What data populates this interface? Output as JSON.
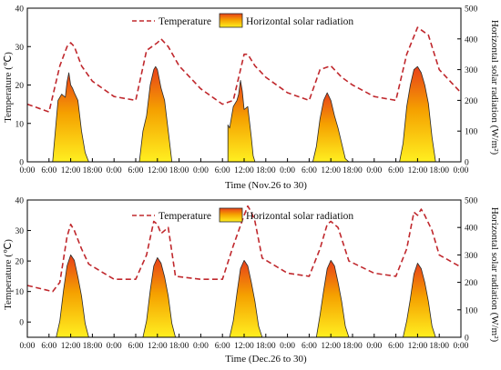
{
  "colors": {
    "temperature_line": "#c0282d",
    "radiation_fill_top": "#e8401a",
    "radiation_fill_mid": "#f5a000",
    "radiation_fill_bottom": "#ffef20",
    "radiation_edge": "#2a2a2a",
    "axis": "#000000"
  },
  "chart_data": [
    {
      "type": "line+area",
      "legend": {
        "temperature": "Temperature",
        "radiation": "Horizontal solar radiation",
        "placement": "top-center"
      },
      "xlabel": "Time (Nov.26 to 30)",
      "ylabel_left": "Temperature (℃)",
      "ylabel_right": "Horizontal solar radiation (W/m²)",
      "ylim_left": [
        0,
        40
      ],
      "ylim_right": [
        0,
        500
      ],
      "yticks_left": [
        "0",
        "10",
        "20",
        "30",
        "40"
      ],
      "yticks_right": [
        "0",
        "100",
        "200",
        "300",
        "400",
        "500"
      ],
      "xticks": [
        "0:00",
        "6:00",
        "12:00",
        "18:00",
        "0:00",
        "6:00",
        "12:00",
        "18:00",
        "0:00",
        "6:00",
        "12:00",
        "18:00",
        "0:00",
        "6:00",
        "12:00",
        "18:00",
        "0:00",
        "6:00",
        "12:00",
        "18:00",
        "0:00"
      ],
      "grid": false,
      "series": [
        {
          "name": "Temperature",
          "x_hours": [
            0,
            6,
            9,
            11,
            12,
            13,
            15,
            18,
            24,
            30,
            33,
            36,
            37,
            39,
            42,
            48,
            54,
            57,
            60,
            61,
            63,
            66,
            72,
            78,
            81,
            84,
            87,
            90,
            96,
            102,
            105,
            108,
            111,
            114,
            120
          ],
          "values": [
            15,
            13,
            25,
            30,
            31,
            30,
            25,
            21,
            17,
            16,
            29,
            31,
            32,
            30,
            25,
            19,
            15,
            16,
            28,
            28,
            25,
            22,
            18,
            16,
            24,
            25,
            22,
            20,
            17,
            16,
            28,
            35,
            33,
            24,
            18
          ]
        },
        {
          "name": "Horizontal solar radiation",
          "x_hours": [
            7,
            8.5,
            9.5,
            10.5,
            11,
            11.5,
            12,
            12.5,
            13,
            14,
            15,
            16,
            17,
            31,
            32,
            33,
            34,
            35,
            35.5,
            36,
            36.5,
            37,
            38,
            39,
            40,
            41,
            55,
            55.5,
            56,
            57,
            58,
            58.5,
            59,
            59.5,
            60,
            61,
            62,
            62.5,
            63,
            64,
            65,
            79,
            80,
            81,
            82,
            83,
            84,
            85,
            86,
            87,
            88,
            89,
            103,
            104,
            105,
            106,
            107,
            108,
            109,
            110,
            111,
            112,
            113
          ],
          "values": [
            0,
            200,
            220,
            210,
            260,
            290,
            250,
            240,
            225,
            200,
            100,
            30,
            0,
            0,
            100,
            150,
            250,
            300,
            310,
            300,
            270,
            240,
            200,
            100,
            0,
            0,
            0,
            120,
            110,
            180,
            200,
            220,
            265,
            230,
            170,
            180,
            80,
            20,
            0,
            0,
            0,
            0,
            50,
            140,
            200,
            225,
            200,
            150,
            110,
            60,
            10,
            0,
            0,
            60,
            180,
            250,
            300,
            310,
            290,
            250,
            190,
            80,
            0
          ]
        }
      ]
    },
    {
      "type": "line+area",
      "legend": {
        "temperature": "Temperature",
        "radiation": "Horizontal solar radiation",
        "placement": "top-center"
      },
      "xlabel": "Time (Dec.26 to 30)",
      "ylabel_left": "Temperature (℃)",
      "ylabel_right": "Horizontal solar radiation (W/m²)",
      "ylim_left": [
        -5,
        40
      ],
      "ylim_right": [
        0,
        500
      ],
      "yticks_left": [
        "0",
        "10",
        "20",
        "30",
        "40"
      ],
      "yticks_right": [
        "0",
        "100",
        "200",
        "300",
        "400",
        "500"
      ],
      "xticks": [
        "0:00",
        "6:00",
        "12:00",
        "18:00",
        "0:00",
        "6:00",
        "12:00",
        "18:00",
        "0:00",
        "6:00",
        "12:00",
        "18:00",
        "0:00",
        "6:00",
        "12:00",
        "18:00",
        "0:00",
        "6:00",
        "12:00",
        "18:00",
        "0:00"
      ],
      "grid": false,
      "series": [
        {
          "name": "Temperature",
          "x_hours": [
            0,
            7,
            9,
            11,
            12,
            13,
            15,
            17,
            24,
            30,
            33,
            35,
            36,
            37,
            39,
            41,
            48,
            54,
            57,
            60,
            61,
            62,
            63,
            65,
            72,
            78,
            81,
            83,
            84,
            86,
            89,
            96,
            102,
            105,
            107,
            108,
            109,
            110,
            112,
            114,
            120
          ],
          "values": [
            12,
            10,
            13,
            28,
            32,
            30,
            24,
            19,
            14,
            14,
            22,
            33,
            32,
            29,
            31,
            15,
            14,
            14,
            25,
            35,
            38,
            36,
            33,
            21,
            16,
            15,
            24,
            32,
            33,
            31,
            20,
            16,
            15,
            24,
            36,
            35,
            37,
            35,
            30,
            22,
            18
          ]
        },
        {
          "name": "Horizontal solar radiation",
          "x_hours": [
            8,
            9,
            10,
            11,
            12,
            13,
            14,
            15,
            16,
            17,
            32,
            33,
            34,
            35,
            36,
            37,
            38,
            39,
            40,
            41,
            56,
            57,
            58,
            59,
            60,
            61,
            62,
            63,
            64,
            65,
            80,
            81,
            82,
            83,
            84,
            85,
            86,
            87,
            88,
            89,
            104,
            105,
            106,
            107,
            108,
            109,
            110,
            111,
            112,
            113
          ],
          "values": [
            0,
            60,
            170,
            260,
            300,
            280,
            220,
            150,
            50,
            0,
            0,
            60,
            170,
            260,
            290,
            270,
            220,
            150,
            50,
            0,
            0,
            60,
            160,
            250,
            280,
            260,
            200,
            130,
            40,
            0,
            0,
            80,
            170,
            250,
            280,
            260,
            200,
            130,
            40,
            0,
            0,
            60,
            140,
            230,
            270,
            250,
            200,
            130,
            40,
            0
          ]
        }
      ]
    }
  ]
}
